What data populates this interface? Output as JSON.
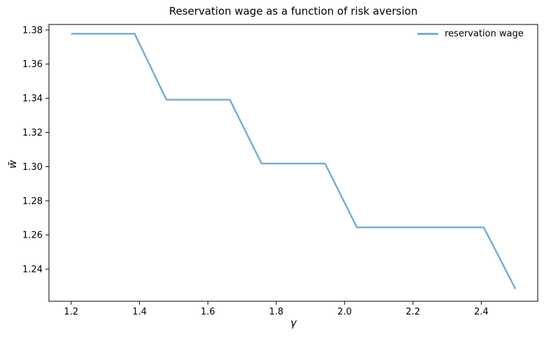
{
  "chart_data": {
    "type": "line",
    "title": "Reservation wage as a function of risk aversion",
    "xlabel": "γ",
    "ylabel": "w̄",
    "series": [
      {
        "name": "reservation wage",
        "x": [
          1.2,
          1.2929,
          1.3857,
          1.4786,
          1.5714,
          1.6643,
          1.7571,
          1.85,
          1.9429,
          2.0357,
          2.1286,
          2.2214,
          2.3143,
          2.4071,
          2.5
        ],
        "y": [
          1.3778,
          1.3778,
          1.3778,
          1.3392,
          1.3392,
          1.3392,
          1.3018,
          1.3018,
          1.3018,
          1.2645,
          1.2645,
          1.2645,
          1.2645,
          1.2645,
          1.2284
        ],
        "color": "#79add2",
        "line_width": 2.5
      }
    ],
    "xlim": [
      1.135,
      2.565
    ],
    "ylim": [
      1.2212,
      1.3832
    ],
    "x_ticks": [
      1.2,
      1.4,
      1.6,
      1.8,
      2.0,
      2.2,
      2.4
    ],
    "x_tick_labels": [
      "1.2",
      "1.4",
      "1.6",
      "1.8",
      "2.0",
      "2.2",
      "2.4"
    ],
    "y_ticks": [
      1.24,
      1.26,
      1.28,
      1.3,
      1.32,
      1.34,
      1.36,
      1.38
    ],
    "y_tick_labels": [
      "1.24",
      "1.26",
      "1.28",
      "1.30",
      "1.32",
      "1.34",
      "1.36",
      "1.38"
    ],
    "grid": false,
    "background_color": "#ffffff",
    "spine_color": "#000000",
    "legend": {
      "position": "upper right",
      "frame": false,
      "entries": [
        "reservation wage"
      ]
    }
  }
}
